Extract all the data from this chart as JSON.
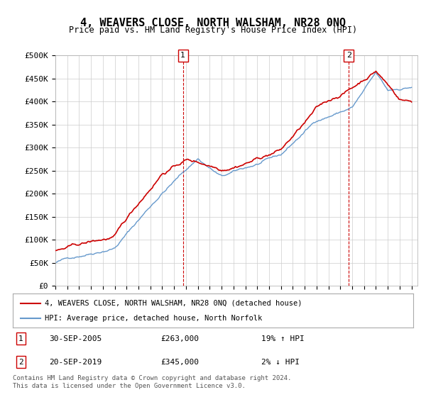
{
  "title": "4, WEAVERS CLOSE, NORTH WALSHAM, NR28 0NQ",
  "subtitle": "Price paid vs. HM Land Registry's House Price Index (HPI)",
  "ylabel_ticks": [
    "£0",
    "£50K",
    "£100K",
    "£150K",
    "£200K",
    "£250K",
    "£300K",
    "£350K",
    "£400K",
    "£450K",
    "£500K"
  ],
  "ytick_values": [
    0,
    50000,
    100000,
    150000,
    200000,
    250000,
    300000,
    350000,
    400000,
    450000,
    500000
  ],
  "ylim": [
    0,
    500000
  ],
  "xlim_start": 1995.0,
  "xlim_end": 2025.5,
  "hpi_color": "#6699cc",
  "price_color": "#cc0000",
  "marker1_date": 2005.75,
  "marker2_date": 2019.72,
  "marker1_price": 263000,
  "marker2_price": 345000,
  "legend_line1": "4, WEAVERS CLOSE, NORTH WALSHAM, NR28 0NQ (detached house)",
  "legend_line2": "HPI: Average price, detached house, North Norfolk",
  "annotation1_label": "1",
  "annotation1_text": "30-SEP-2005    £263,000        19% ↑ HPI",
  "annotation2_label": "2",
  "annotation2_text": "20-SEP-2019    £345,000          2% ↓ HPI",
  "footer": "Contains HM Land Registry data © Crown copyright and database right 2024.\nThis data is licensed under the Open Government Licence v3.0.",
  "background_color": "#ffffff",
  "grid_color": "#cccccc"
}
